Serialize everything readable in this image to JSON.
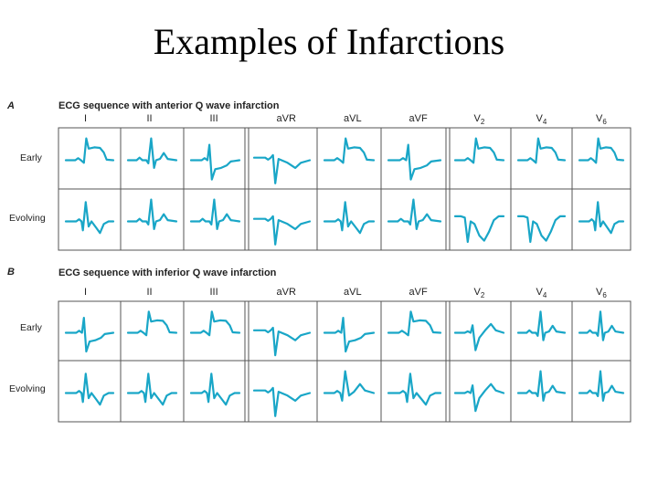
{
  "title": "Examples of Infarctions",
  "trace_color": "#19a6c7",
  "panels": [
    {
      "letter": "A",
      "title": "ECG sequence with anterior Q wave infarction",
      "leads": [
        {
          "base": "I",
          "sub": ""
        },
        {
          "base": "II",
          "sub": ""
        },
        {
          "base": "III",
          "sub": ""
        },
        {
          "base": "aVR",
          "sub": ""
        },
        {
          "base": "aVL",
          "sub": ""
        },
        {
          "base": "aVF",
          "sub": ""
        },
        {
          "base": "V",
          "sub": "2"
        },
        {
          "base": "V",
          "sub": "4"
        },
        {
          "base": "V",
          "sub": "6"
        }
      ],
      "rows": [
        "Early",
        "Evolving"
      ],
      "traces": [
        [
          "stemi",
          "normal",
          "recip",
          "inv",
          "stemi",
          "recip",
          "stemi",
          "stemi",
          "stemi"
        ],
        [
          "qinv",
          "normal",
          "normal",
          "inv",
          "qinv",
          "normal",
          "qinvdeep",
          "qinvdeep",
          "qinv"
        ]
      ]
    },
    {
      "letter": "B",
      "title": "ECG sequence with inferior Q wave infarction",
      "leads": [
        {
          "base": "I",
          "sub": ""
        },
        {
          "base": "II",
          "sub": ""
        },
        {
          "base": "III",
          "sub": ""
        },
        {
          "base": "aVR",
          "sub": ""
        },
        {
          "base": "aVL",
          "sub": ""
        },
        {
          "base": "aVF",
          "sub": ""
        },
        {
          "base": "V",
          "sub": "2"
        },
        {
          "base": "V",
          "sub": "4"
        },
        {
          "base": "V",
          "sub": "6"
        }
      ],
      "rows": [
        "Early",
        "Evolving"
      ],
      "traces": [
        [
          "recip",
          "stemi",
          "stemi",
          "inv",
          "recip",
          "stemi",
          "rs",
          "normal",
          "normal"
        ],
        [
          "qinv",
          "qinv",
          "qinv",
          "inv",
          "tall",
          "qinv",
          "rs",
          "normal",
          "normal"
        ]
      ]
    }
  ]
}
